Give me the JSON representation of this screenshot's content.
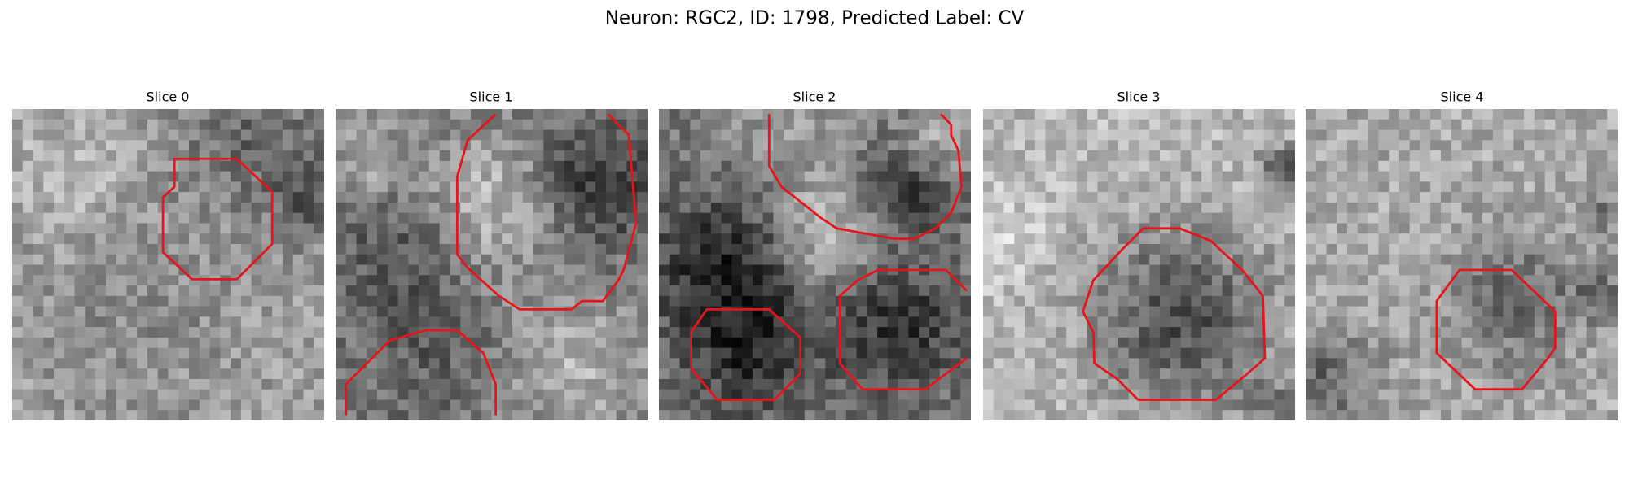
{
  "title": "Neuron: RGC2, ID: 1798, Predicted Label: CV",
  "panels": [
    {
      "title": "Slice 0"
    },
    {
      "title": "Slice 1"
    },
    {
      "title": "Slice 2"
    },
    {
      "title": "Slice 3"
    },
    {
      "title": "Slice 4"
    }
  ]
}
